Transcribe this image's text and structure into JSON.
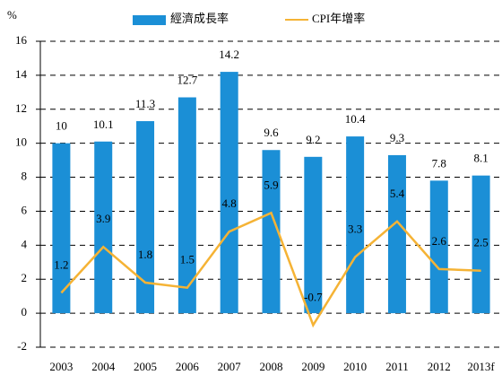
{
  "chart_data": {
    "type": "bar_line",
    "y_unit_label": "%",
    "categories": [
      "2003",
      "2004",
      "2005",
      "2006",
      "2007",
      "2008",
      "2009",
      "2010",
      "2011",
      "2012",
      "2013f"
    ],
    "series": [
      {
        "name": "經濟成長率",
        "type": "bar",
        "color": "#1b8fd6",
        "values": [
          10,
          10.1,
          11.3,
          12.7,
          14.2,
          9.6,
          9.2,
          10.4,
          9.3,
          7.8,
          8.1
        ]
      },
      {
        "name": "CPI年增率",
        "type": "line",
        "color": "#f5b335",
        "values": [
          1.2,
          3.9,
          1.8,
          1.5,
          4.8,
          5.9,
          -0.7,
          3.3,
          5.4,
          2.6,
          2.5
        ]
      }
    ],
    "ylim": [
      -2,
      16
    ],
    "yticks": [
      -2,
      0,
      2,
      4,
      6,
      8,
      10,
      12,
      14,
      16
    ],
    "grid": true,
    "legend": "top"
  }
}
